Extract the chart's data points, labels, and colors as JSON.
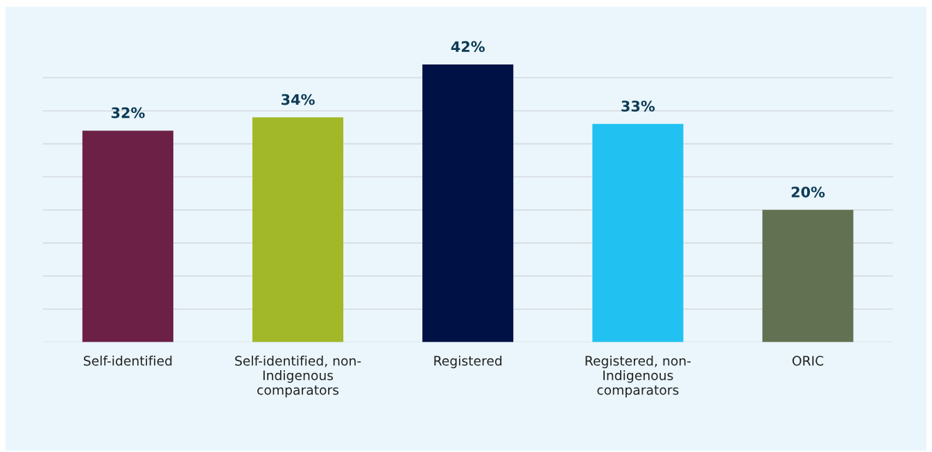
{
  "chart_data": {
    "type": "bar",
    "categories": [
      "Self-identified",
      "Self-identified, non-Indigenous comparators",
      "Registered",
      "Registered, non-Indigenous comparators",
      "ORIC"
    ],
    "values": [
      32,
      34,
      42,
      33,
      20
    ],
    "value_labels": [
      "32%",
      "34%",
      "42%",
      "33%",
      "20%"
    ],
    "colors": [
      "#6d2046",
      "#a2b828",
      "#001145",
      "#21c2f2",
      "#617152"
    ],
    "tick_labels": "x",
    "grid": "y"
  }
}
